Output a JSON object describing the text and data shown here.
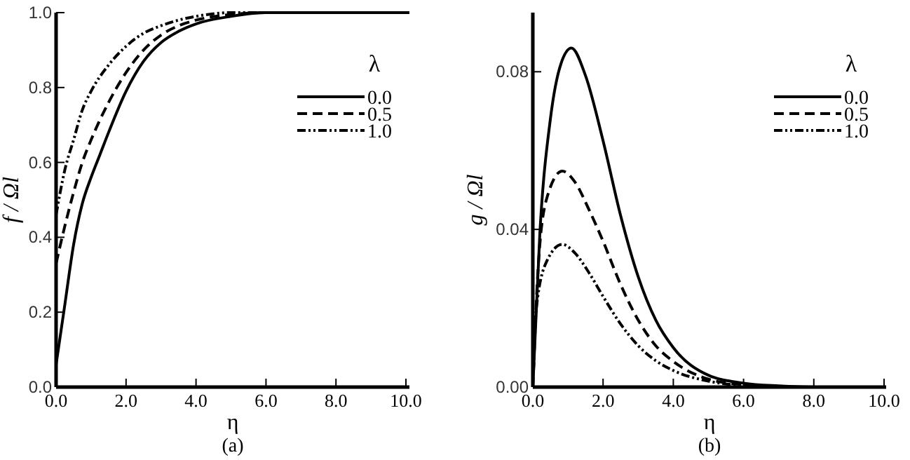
{
  "chart_data": [
    {
      "type": "line",
      "xlabel": "η",
      "ylabel": "f / Ωl",
      "legend_title": "λ",
      "legend": "top right",
      "grid": false,
      "annotations": [
        "(a)"
      ],
      "xlim": [
        0,
        10.1
      ],
      "ylim": [
        0,
        1
      ],
      "xticks": [
        {
          "value": 0,
          "label": "0.0"
        },
        {
          "value": 2,
          "label": "2.0"
        },
        {
          "value": 4,
          "label": "4.0"
        },
        {
          "value": 6,
          "label": "6.0"
        },
        {
          "value": 8,
          "label": "8.0"
        },
        {
          "value": 10,
          "label": "10.0"
        }
      ],
      "yticks": [
        {
          "value": 0,
          "label": "0.0"
        },
        {
          "value": 0.2,
          "label": "0.2"
        },
        {
          "value": 0.4,
          "label": "0.4"
        },
        {
          "value": 0.6,
          "label": "0.6"
        },
        {
          "value": 0.8,
          "label": "0.8"
        },
        {
          "value": 1,
          "label": "1.0"
        }
      ],
      "series": [
        {
          "name": "0.0",
          "color": "#000000",
          "line_style": "solid",
          "x": [
            0,
            0.25,
            0.5,
            0.75,
            1.0,
            1.25,
            1.5,
            2.0,
            2.5,
            3.0,
            3.5,
            4.0,
            5.0,
            6.0,
            8.0,
            10.1
          ],
          "values": [
            0.06,
            0.22,
            0.38,
            0.49,
            0.56,
            0.62,
            0.68,
            0.79,
            0.87,
            0.92,
            0.95,
            0.97,
            0.99,
            1.0,
            1.0,
            1.0
          ]
        },
        {
          "name": "0.5",
          "color": "#000000",
          "line_style": "dashed",
          "x": [
            0,
            0.25,
            0.5,
            0.75,
            1.0,
            1.5,
            2.0,
            2.5,
            3.0,
            3.5,
            4.0,
            5.0,
            6.0,
            10.1
          ],
          "values": [
            0.33,
            0.43,
            0.52,
            0.6,
            0.66,
            0.76,
            0.84,
            0.9,
            0.94,
            0.965,
            0.98,
            0.995,
            1.0,
            1.0
          ]
        },
        {
          "name": "1.0",
          "color": "#000000",
          "line_style": "dashdot",
          "x": [
            0,
            0.25,
            0.5,
            0.75,
            1.0,
            1.5,
            2.0,
            2.5,
            3.0,
            3.5,
            4.0,
            5.0,
            6.0,
            10.1
          ],
          "values": [
            0.46,
            0.58,
            0.66,
            0.74,
            0.79,
            0.86,
            0.91,
            0.945,
            0.965,
            0.98,
            0.99,
            1.0,
            1.0,
            1.0
          ]
        }
      ]
    },
    {
      "type": "line",
      "xlabel": "η",
      "ylabel": "g / Ωl",
      "legend_title": "λ",
      "legend": "top right",
      "grid": false,
      "annotations": [
        "(b)"
      ],
      "xlim": [
        0,
        10.06
      ],
      "ylim": [
        0,
        0.095
      ],
      "xticks": [
        {
          "value": 0,
          "label": "0.0"
        },
        {
          "value": 2,
          "label": "2.0"
        },
        {
          "value": 4,
          "label": "4.0"
        },
        {
          "value": 6,
          "label": "6.0"
        },
        {
          "value": 8,
          "label": "8.0"
        },
        {
          "value": 10,
          "label": "10.0"
        }
      ],
      "yticks": [
        {
          "value": 0,
          "label": "0.00"
        },
        0.04,
        {
          "value": 0.08,
          "label": "0.08"
        }
      ],
      "series": [
        {
          "name": "0.0",
          "color": "#000000",
          "line_style": "solid",
          "x": [
            0,
            0.2,
            0.5,
            0.8,
            1.1,
            1.5,
            2.0,
            2.5,
            3.0,
            3.5,
            4.0,
            5.0,
            6.0,
            7.0,
            8.0,
            10.06
          ],
          "values": [
            0,
            0.039,
            0.068,
            0.082,
            0.086,
            0.079,
            0.0625,
            0.0435,
            0.028,
            0.017,
            0.01,
            0.003,
            0.001,
            0.0003,
            0,
            0
          ]
        },
        {
          "name": "0.5",
          "color": "#000000",
          "line_style": "dashed",
          "x": [
            0,
            0.15,
            0.4,
            0.84,
            1.2,
            1.6,
            2.0,
            2.5,
            3.0,
            3.5,
            4.0,
            5.0,
            6.0,
            7.0,
            8.0,
            10.06
          ],
          "values": [
            0,
            0.03,
            0.048,
            0.0548,
            0.052,
            0.045,
            0.037,
            0.026,
            0.017,
            0.0105,
            0.0065,
            0.002,
            0.0006,
            0.0001,
            0,
            0
          ]
        },
        {
          "name": "1.0",
          "color": "#000000",
          "line_style": "dashdot",
          "x": [
            0.02,
            0.1,
            0.4,
            0.84,
            1.2,
            1.6,
            2.0,
            2.5,
            3.0,
            3.5,
            4.0,
            5.0,
            6.0,
            7.0,
            8.0,
            9.5
          ],
          "values": [
            0.004,
            0.02,
            0.032,
            0.0362,
            0.034,
            0.029,
            0.023,
            0.016,
            0.0105,
            0.0067,
            0.0042,
            0.0015,
            0.0004,
            0.0001,
            0,
            0
          ]
        }
      ]
    }
  ]
}
